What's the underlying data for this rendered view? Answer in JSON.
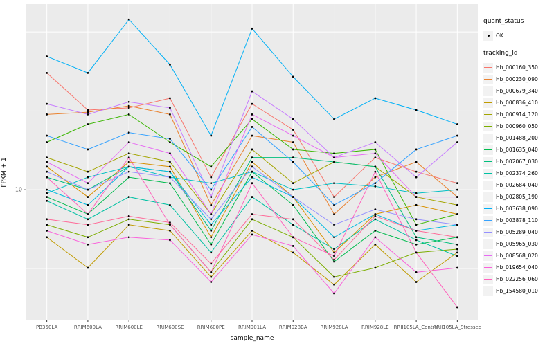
{
  "figure": {
    "xlabel": "sample_name",
    "ylabel": "FPKM + 1",
    "y_tick_label": "10"
  },
  "legend": {
    "quant_status_title": "quant_status",
    "quant_status_items": [
      {
        "label": "OK",
        "shape": "point"
      }
    ],
    "tracking_title": "tracking_id"
  },
  "colors": {
    "panel_background": "#EBEBEB",
    "gridline": "#FFFFFF",
    "tick_text": "#4D4D4D",
    "point": "#000000",
    "legend_key_background": "#F2F2F2"
  },
  "chart_data": {
    "type": "line",
    "title": "",
    "xlabel": "sample_name",
    "ylabel": "FPKM + 1",
    "x_type": "categorical",
    "y_scale": "log10",
    "ylim": [
      1.5,
      150
    ],
    "y_major_ticks": [
      10
    ],
    "y_major_gridlines": [
      10,
      100
    ],
    "y_minor_gridlines": [
      3.162,
      31.62
    ],
    "grid": true,
    "legend_position": "right",
    "point_marker": "small black dot (quant_status = OK)",
    "categories": [
      "PB350LA",
      "RRIM600LA",
      "RRIM600LE",
      "RRIM600SE",
      "RRIM600PE",
      "RRIM901LA",
      "RRIM928BA",
      "RRIM928LA",
      "RRIM928LE",
      "RRII105LA_Control",
      "RRII105LA_Stressed"
    ],
    "series": [
      {
        "name": "Hb_000160_350",
        "color": "#F8766D",
        "values": [
          55,
          32,
          33,
          38,
          12,
          35,
          24,
          9,
          16,
          13,
          11
        ]
      },
      {
        "name": "Hb_000230_090",
        "color": "#EA8331",
        "values": [
          30,
          31,
          34,
          30,
          8,
          22,
          20,
          7,
          12,
          15,
          9
        ]
      },
      {
        "name": "Hb_000679_340",
        "color": "#D89000",
        "values": [
          14,
          9,
          15,
          14,
          5,
          15,
          9,
          4,
          7,
          8,
          7
        ]
      },
      {
        "name": "Hb_000836_410",
        "color": "#C09B00",
        "values": [
          5,
          3.2,
          6,
          5.5,
          2.8,
          5.5,
          4,
          2.5,
          4.5,
          2.6,
          4
        ]
      },
      {
        "name": "Hb_000914_120",
        "color": "#A3A500",
        "values": [
          16,
          13,
          17,
          15,
          7,
          18,
          11,
          15,
          14,
          9,
          8
        ]
      },
      {
        "name": "Hb_000960_050",
        "color": "#7CAE00",
        "values": [
          6,
          5,
          6.5,
          6,
          3,
          6.5,
          5,
          2.8,
          3.2,
          4,
          4.2
        ]
      },
      {
        "name": "Hb_001488_200",
        "color": "#39B600",
        "values": [
          20,
          26,
          30,
          20,
          14,
          28,
          18,
          17,
          18,
          6,
          7
        ]
      },
      {
        "name": "Hb_001635_040",
        "color": "#00BB4E",
        "values": [
          9,
          7,
          12,
          11,
          4.5,
          13,
          8,
          3.5,
          5.5,
          4.5,
          5
        ]
      },
      {
        "name": "Hb_002067_030",
        "color": "#00BF7D",
        "values": [
          12,
          10,
          14,
          13,
          5.5,
          16,
          16,
          15,
          14,
          5,
          4.5
        ]
      },
      {
        "name": "Hb_002374_260",
        "color": "#00C1A3",
        "values": [
          8.5,
          6.5,
          9,
          8,
          4,
          9,
          6,
          4.2,
          6.5,
          4.8,
          3.8
        ]
      },
      {
        "name": "Hb_002684_040",
        "color": "#00BFC4",
        "values": [
          9.5,
          12,
          14,
          12,
          11,
          13,
          10,
          11,
          10.5,
          9.5,
          10
        ]
      },
      {
        "name": "Hb_002805_190",
        "color": "#00BAE0",
        "values": [
          10,
          8,
          14,
          13,
          6,
          12,
          9,
          5,
          7,
          5.5,
          6
        ]
      },
      {
        "name": "Hb_003638_090",
        "color": "#00B0F6",
        "values": [
          70,
          55,
          120,
          62,
          22,
          105,
          52,
          28,
          38,
          32,
          26
        ]
      },
      {
        "name": "Hb_003878_110",
        "color": "#35A2FF",
        "values": [
          22,
          18,
          23,
          21,
          10,
          25,
          15,
          8,
          11,
          18,
          22
        ]
      },
      {
        "name": "Hb_005289_040",
        "color": "#9590FF",
        "values": [
          13,
          10,
          13,
          12,
          6.5,
          14,
          9,
          6,
          7.5,
          6.5,
          6
        ]
      },
      {
        "name": "Hb_005965_030",
        "color": "#C77CFF",
        "values": [
          35,
          30,
          36,
          33,
          9,
          42,
          28,
          16,
          20,
          12,
          20
        ]
      },
      {
        "name": "Hb_008568_020",
        "color": "#E76BF3",
        "values": [
          15,
          11,
          20,
          17,
          7,
          30,
          22,
          16,
          17,
          9,
          9
        ]
      },
      {
        "name": "Hb_019654_040",
        "color": "#FA62DB",
        "values": [
          5.5,
          4.5,
          5,
          4.8,
          2.6,
          5.2,
          4.4,
          2.2,
          5,
          3,
          3.2
        ]
      },
      {
        "name": "Hb_022256_060",
        "color": "#FF62BC",
        "values": [
          12,
          7,
          16,
          6,
          3,
          11,
          5,
          3.8,
          13,
          4,
          1.8
        ]
      },
      {
        "name": "Hb_154580_010",
        "color": "#FF6A98",
        "values": [
          6.5,
          6,
          6.8,
          6.2,
          3.4,
          7,
          6.5,
          3.6,
          6.8,
          5.5,
          5
        ]
      }
    ]
  }
}
